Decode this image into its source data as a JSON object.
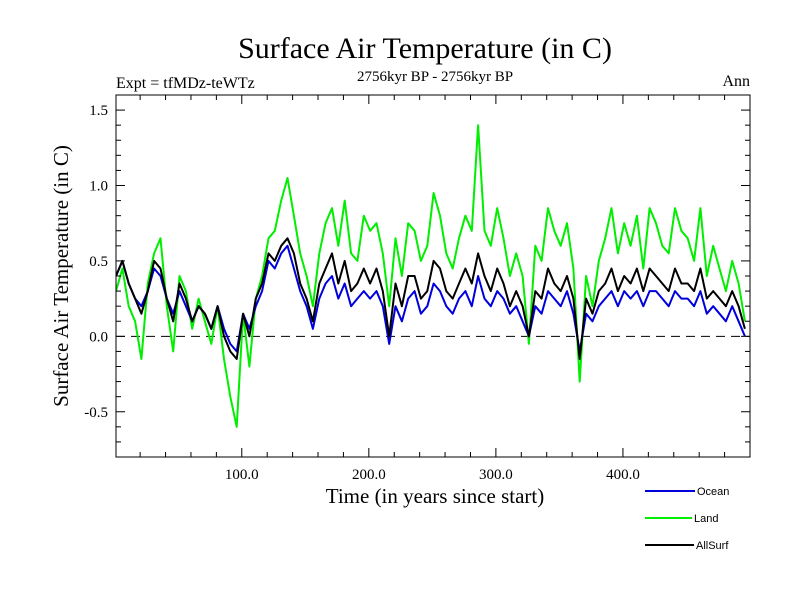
{
  "chart_data": {
    "type": "line",
    "title": "Surface Air Temperature (in C)",
    "subtitle": "2756kyr BP - 2756kyr BP",
    "expt_label": "Expt = tfMDz-teWTz",
    "season_label": "Ann",
    "xlabel": "Time (in years since start)",
    "ylabel": "Surface Air Temperature (in C)",
    "xlim": [
      1,
      500
    ],
    "ylim": [
      -0.8,
      1.6
    ],
    "x_ticks": [
      100,
      200,
      300,
      400
    ],
    "x_tick_labels": [
      "100.0",
      "200.0",
      "300.0",
      "400.0"
    ],
    "y_ticks": [
      -0.5,
      0.0,
      0.5,
      1.0,
      1.5
    ],
    "y_tick_labels": [
      "-0.5",
      "0.0",
      "0.5",
      "1.0",
      "1.5"
    ],
    "reference_line": 0.0,
    "series": [
      {
        "name": "Land",
        "color": "#00ee00",
        "x_start": 1,
        "x_step": 5,
        "values": [
          0.3,
          0.45,
          0.2,
          0.1,
          -0.15,
          0.35,
          0.55,
          0.65,
          0.2,
          -0.1,
          0.4,
          0.3,
          0.05,
          0.25,
          0.1,
          -0.05,
          0.2,
          -0.15,
          -0.4,
          -0.6,
          0.15,
          -0.2,
          0.25,
          0.4,
          0.65,
          0.7,
          0.9,
          1.05,
          0.8,
          0.55,
          0.4,
          0.2,
          0.55,
          0.75,
          0.85,
          0.6,
          0.9,
          0.55,
          0.5,
          0.8,
          0.7,
          0.75,
          0.55,
          0.2,
          0.65,
          0.4,
          0.75,
          0.7,
          0.5,
          0.6,
          0.95,
          0.8,
          0.55,
          0.45,
          0.65,
          0.8,
          0.7,
          1.4,
          0.7,
          0.6,
          0.85,
          0.65,
          0.4,
          0.55,
          0.4,
          -0.05,
          0.6,
          0.5,
          0.85,
          0.7,
          0.6,
          0.75,
          0.45,
          -0.3,
          0.4,
          0.2,
          0.5,
          0.65,
          0.85,
          0.55,
          0.75,
          0.6,
          0.8,
          0.45,
          0.85,
          0.75,
          0.6,
          0.55,
          0.85,
          0.7,
          0.65,
          0.5,
          0.85,
          0.4,
          0.6,
          0.45,
          0.3,
          0.5,
          0.35,
          0.1
        ]
      },
      {
        "name": "Ocean",
        "color": "#0000dd",
        "x_start": 1,
        "x_step": 5,
        "values": [
          0.4,
          0.5,
          0.35,
          0.25,
          0.2,
          0.3,
          0.45,
          0.4,
          0.25,
          0.15,
          0.3,
          0.2,
          0.1,
          0.2,
          0.15,
          0.05,
          0.2,
          0.05,
          -0.05,
          -0.1,
          0.15,
          0.05,
          0.2,
          0.3,
          0.5,
          0.45,
          0.55,
          0.6,
          0.45,
          0.3,
          0.2,
          0.05,
          0.25,
          0.35,
          0.4,
          0.25,
          0.35,
          0.2,
          0.25,
          0.3,
          0.25,
          0.3,
          0.2,
          -0.05,
          0.2,
          0.1,
          0.25,
          0.3,
          0.15,
          0.2,
          0.35,
          0.3,
          0.2,
          0.15,
          0.25,
          0.3,
          0.2,
          0.4,
          0.25,
          0.2,
          0.3,
          0.25,
          0.15,
          0.2,
          0.1,
          0.0,
          0.2,
          0.15,
          0.3,
          0.25,
          0.2,
          0.3,
          0.15,
          -0.1,
          0.15,
          0.1,
          0.2,
          0.25,
          0.3,
          0.2,
          0.3,
          0.25,
          0.3,
          0.2,
          0.3,
          0.3,
          0.25,
          0.2,
          0.3,
          0.25,
          0.25,
          0.2,
          0.3,
          0.15,
          0.2,
          0.15,
          0.1,
          0.2,
          0.1,
          0.0
        ]
      },
      {
        "name": "AllSurf",
        "color": "#000000",
        "x_start": 1,
        "x_step": 5,
        "values": [
          0.4,
          0.5,
          0.35,
          0.25,
          0.15,
          0.3,
          0.5,
          0.45,
          0.25,
          0.1,
          0.35,
          0.25,
          0.1,
          0.2,
          0.15,
          0.05,
          0.2,
          0.0,
          -0.1,
          -0.15,
          0.15,
          0.0,
          0.25,
          0.35,
          0.55,
          0.5,
          0.6,
          0.65,
          0.55,
          0.35,
          0.25,
          0.1,
          0.35,
          0.45,
          0.55,
          0.35,
          0.5,
          0.3,
          0.35,
          0.45,
          0.35,
          0.45,
          0.3,
          0.0,
          0.35,
          0.2,
          0.4,
          0.4,
          0.25,
          0.3,
          0.5,
          0.45,
          0.3,
          0.25,
          0.35,
          0.45,
          0.35,
          0.55,
          0.4,
          0.3,
          0.45,
          0.35,
          0.2,
          0.3,
          0.2,
          0.0,
          0.3,
          0.25,
          0.45,
          0.35,
          0.3,
          0.4,
          0.25,
          -0.15,
          0.25,
          0.15,
          0.3,
          0.35,
          0.45,
          0.3,
          0.4,
          0.35,
          0.45,
          0.3,
          0.45,
          0.4,
          0.35,
          0.3,
          0.45,
          0.35,
          0.35,
          0.3,
          0.45,
          0.25,
          0.3,
          0.25,
          0.2,
          0.3,
          0.2,
          0.05
        ]
      }
    ],
    "legend": {
      "placement": "bottom-right",
      "entries": [
        {
          "label": "Ocean",
          "color": "#0000dd"
        },
        {
          "label": "Land",
          "color": "#00ee00"
        },
        {
          "label": "AllSurf",
          "color": "#000000"
        }
      ]
    }
  }
}
